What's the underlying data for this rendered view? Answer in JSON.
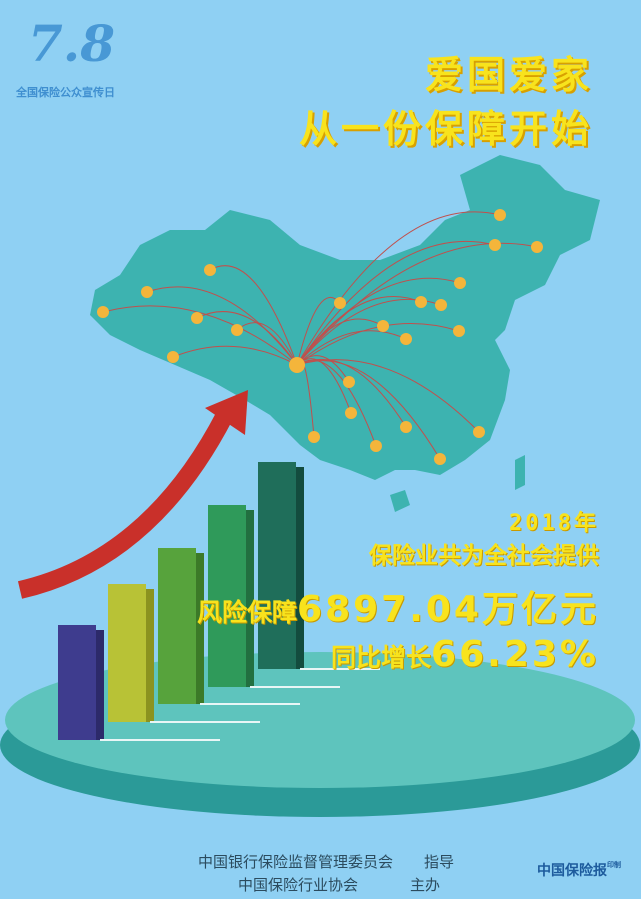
{
  "logo": {
    "number": "7.8",
    "caption": "全国保险公众宣传日"
  },
  "headline": {
    "line1": "爱国爱家",
    "line2": "从一份保障开始"
  },
  "stats": {
    "year": "2018年",
    "line1": "保险业共为全社会提供",
    "line2_prefix": "风险保障",
    "line2_value": "6897.04万亿元",
    "line3_prefix": "同比增长",
    "line3_value": "66.23%"
  },
  "footer": {
    "org1": "中国银行保险监督管理委员会",
    "org1_role": "指导",
    "org2": "中国保险行业协会",
    "org2_role": "主办",
    "brand": "中国保险报",
    "brand_note": "印制"
  },
  "colors": {
    "background": "#8fd0f3",
    "map": "#3db3b0",
    "accent_text": "#f8e31d",
    "arrow": "#d4372b",
    "dots": "#f4b53b"
  }
}
